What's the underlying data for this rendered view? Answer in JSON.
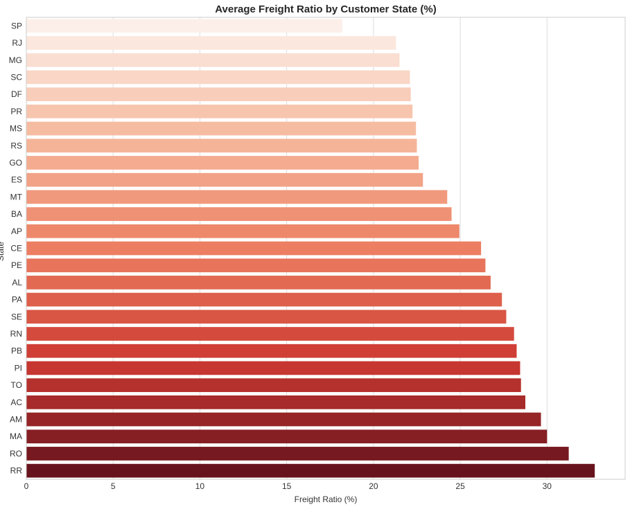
{
  "chart_data": {
    "type": "bar",
    "orientation": "horizontal",
    "title": "Average Freight Ratio by Customer State (%)",
    "xlabel": "Freight Ratio (%)",
    "ylabel": "State",
    "xlim": [
      0,
      34.5
    ],
    "xticks": [
      0,
      5,
      10,
      15,
      20,
      25,
      30
    ],
    "grid": "vertical",
    "legend": "none",
    "palette": "Reds",
    "color_light": "#fcefe9",
    "color_dark": "#67131d",
    "categories": [
      "SP",
      "RJ",
      "MG",
      "SC",
      "DF",
      "PR",
      "MS",
      "RS",
      "GO",
      "ES",
      "MT",
      "BA",
      "AP",
      "CE",
      "PE",
      "AL",
      "PA",
      "SE",
      "RN",
      "PB",
      "PI",
      "TO",
      "AC",
      "AM",
      "MA",
      "RO",
      "RR"
    ],
    "values": [
      18.2,
      21.3,
      21.5,
      22.1,
      22.15,
      22.25,
      22.45,
      22.5,
      22.6,
      22.85,
      24.25,
      24.5,
      24.95,
      26.2,
      26.45,
      26.75,
      27.4,
      27.65,
      28.1,
      28.25,
      28.45,
      28.5,
      28.75,
      29.65,
      30.0,
      31.25,
      32.75
    ]
  }
}
